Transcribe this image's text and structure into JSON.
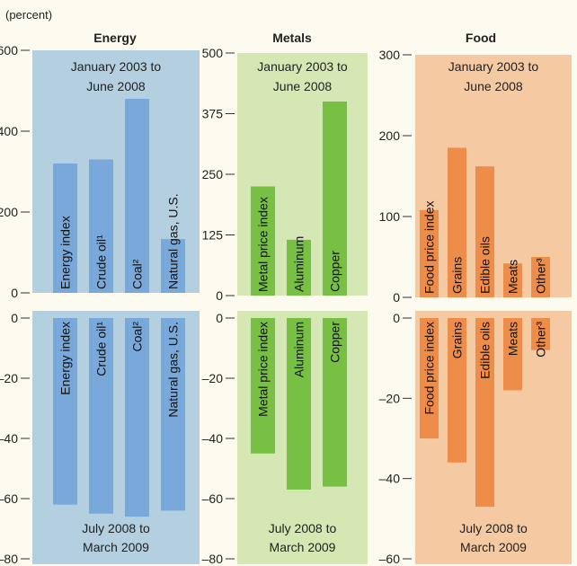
{
  "unit_label": "(percent)",
  "colors": {
    "background": "#fdfaf0",
    "energy_panel": "#b3cfe0",
    "energy_bar": "#79a8da",
    "metals_panel": "#d5e8b4",
    "metals_bar": "#77c044",
    "food_panel": "#f5c9a2",
    "food_bar": "#ee8d4a"
  },
  "chart_data": [
    {
      "type": "bar",
      "title": "Energy",
      "panels": [
        {
          "period": "January 2003 to June 2008",
          "period_lines": [
            "January 2003 to",
            "June 2008"
          ],
          "ylim": [
            0,
            600
          ],
          "yticks": [
            "600",
            "400",
            "200",
            "0"
          ],
          "categories": [
            "Energy index",
            "Crude oil¹",
            "Coal²",
            "Natural gas, U.S."
          ],
          "values": [
            320,
            330,
            480,
            133
          ]
        },
        {
          "period": "July 2008 to March 2009",
          "period_lines": [
            "July 2008 to",
            "March 2009"
          ],
          "ylim": [
            -80,
            0
          ],
          "yticks": [
            "0",
            "–20",
            "–40",
            "–60",
            "–80"
          ],
          "categories": [
            "Energy index",
            "Crude oil¹",
            "Coal²",
            "Natural gas, U.S."
          ],
          "values": [
            -62,
            -65,
            -66,
            -64
          ]
        }
      ]
    },
    {
      "type": "bar",
      "title": "Metals",
      "panels": [
        {
          "period": "January 2003 to June 2008",
          "period_lines": [
            "January 2003 to",
            "June 2008"
          ],
          "ylim": [
            0,
            500
          ],
          "yticks": [
            "500",
            "375",
            "250",
            "125",
            "0"
          ],
          "categories": [
            "Metal price index",
            "Aluminum",
            "Copper"
          ],
          "values": [
            225,
            115,
            400
          ]
        },
        {
          "period": "July 2008 to March 2009",
          "period_lines": [
            "July 2008 to",
            "March 2009"
          ],
          "ylim": [
            -80,
            0
          ],
          "yticks": [
            "0",
            "–20",
            "–40",
            "–60",
            "–80"
          ],
          "categories": [
            "Metal price index",
            "Aluminum",
            "Copper"
          ],
          "values": [
            -45,
            -57,
            -56
          ]
        }
      ]
    },
    {
      "type": "bar",
      "title": "Food",
      "panels": [
        {
          "period": "January 2003 to June 2008",
          "period_lines": [
            "January 2003 to",
            "June 2008"
          ],
          "ylim": [
            0,
            300
          ],
          "yticks": [
            "300",
            "200",
            "100",
            "0"
          ],
          "categories": [
            "Food price index",
            "Grains",
            "Edible oils",
            "Meats",
            "Other³"
          ],
          "values": [
            108,
            185,
            162,
            42,
            50
          ]
        },
        {
          "period": "July 2008 to March 2009",
          "period_lines": [
            "July 2008 to",
            "March 2009"
          ],
          "ylim": [
            -60,
            0
          ],
          "yticks": [
            "0",
            "–20",
            "–40",
            "–60"
          ],
          "categories": [
            "Food price index",
            "Grains",
            "Edible oils",
            "Meats",
            "Other³"
          ],
          "values": [
            -30,
            -36,
            -47,
            -18,
            -8
          ]
        }
      ]
    }
  ]
}
